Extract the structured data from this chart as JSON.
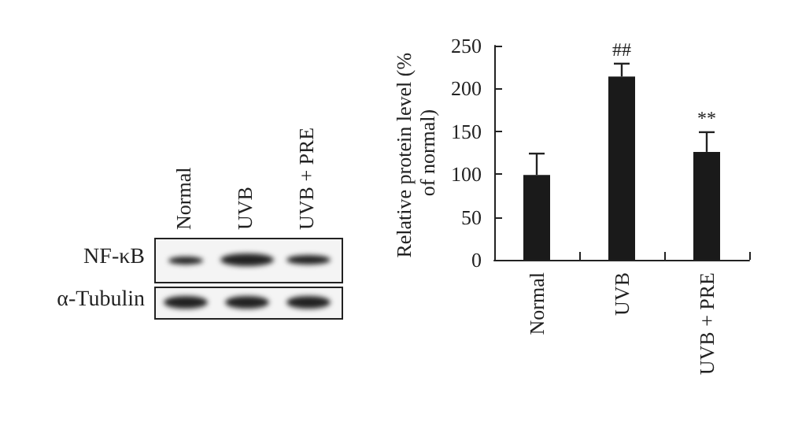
{
  "chart_data": {
    "type": "bar",
    "ylabel": "Relative protein level (% of normal)",
    "categories": [
      "Normal",
      "UVB",
      "UVB + PRE"
    ],
    "values": [
      99,
      214,
      126
    ],
    "errors": [
      25,
      15,
      23
    ],
    "color": "#1a1a1a",
    "ylim": [
      0,
      250
    ],
    "yticks": [
      0,
      50,
      100,
      150,
      200,
      250
    ],
    "grid": false,
    "annotations": [
      "Normal",
      "UVB",
      "UVB + PRE",
      "NF-κB",
      "α-Tubulin",
      {
        "text": "##",
        "x": "UVB",
        "y": 229
      },
      {
        "text": "**",
        "x": "UVB + PRE",
        "y": 149
      }
    ]
  }
}
